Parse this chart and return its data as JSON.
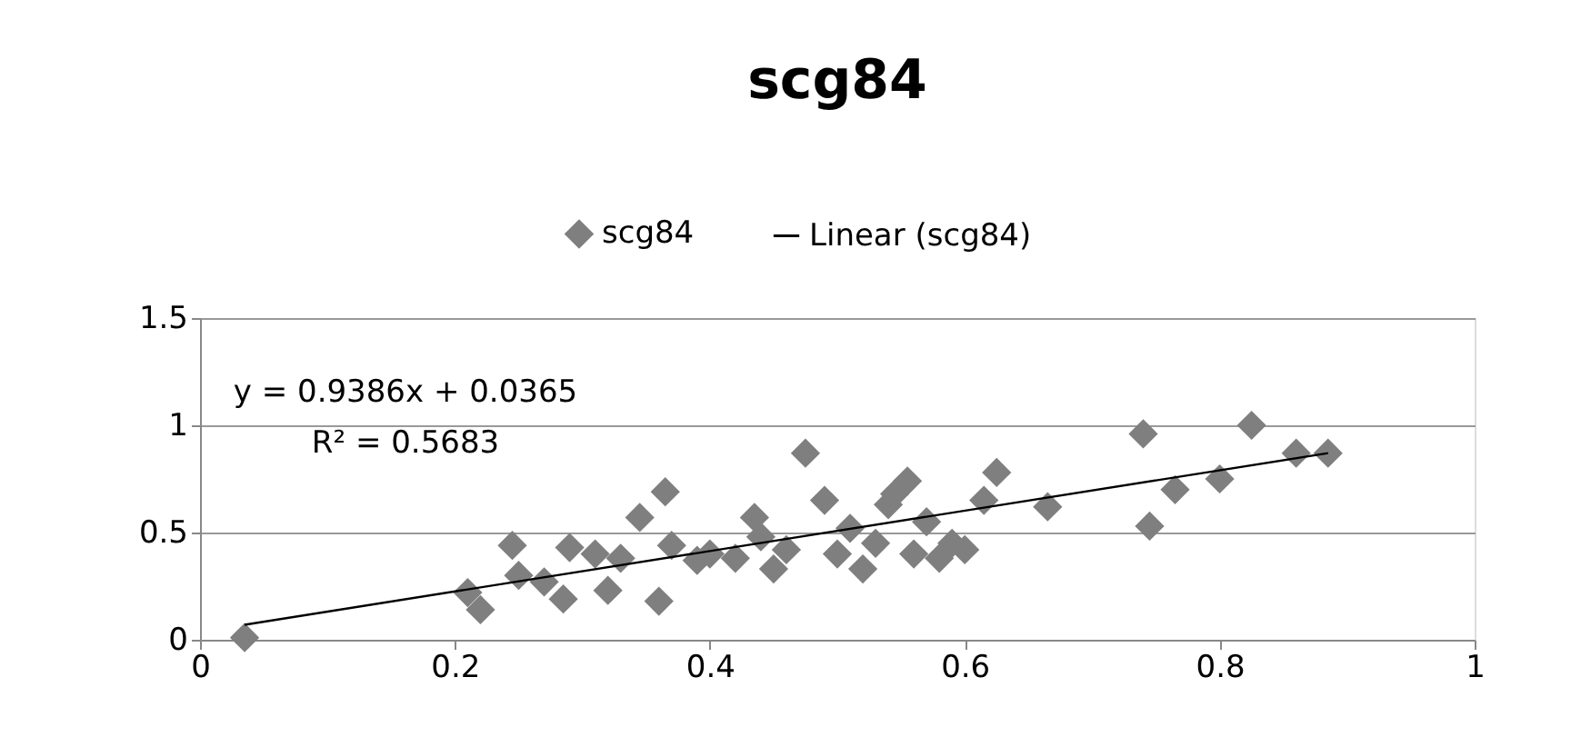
{
  "chart_data": {
    "type": "scatter",
    "title": "scg84",
    "series": [
      {
        "name": "scg84",
        "color": "#7f7f7f",
        "marker": "diamond",
        "x": [
          0.035,
          0.21,
          0.22,
          0.245,
          0.25,
          0.27,
          0.285,
          0.29,
          0.31,
          0.32,
          0.33,
          0.345,
          0.36,
          0.365,
          0.37,
          0.39,
          0.4,
          0.42,
          0.435,
          0.44,
          0.45,
          0.46,
          0.475,
          0.49,
          0.5,
          0.51,
          0.52,
          0.53,
          0.54,
          0.545,
          0.555,
          0.56,
          0.57,
          0.58,
          0.59,
          0.6,
          0.615,
          0.625,
          0.665,
          0.74,
          0.745,
          0.765,
          0.8,
          0.825,
          0.86,
          0.885
        ],
        "values": [
          0.01,
          0.22,
          0.14,
          0.44,
          0.3,
          0.27,
          0.19,
          0.43,
          0.4,
          0.23,
          0.38,
          0.57,
          0.18,
          0.69,
          0.44,
          0.37,
          0.4,
          0.38,
          0.57,
          0.48,
          0.33,
          0.42,
          0.87,
          0.65,
          0.4,
          0.52,
          0.33,
          0.45,
          0.63,
          0.68,
          0.74,
          0.4,
          0.55,
          0.38,
          0.45,
          0.42,
          0.65,
          0.78,
          0.62,
          0.96,
          0.53,
          0.7,
          0.75,
          1.0,
          0.87,
          0.87
        ]
      },
      {
        "name": "Linear (scg84)",
        "type": "line",
        "color": "#000000",
        "marker": "none",
        "x": [
          0.035,
          0.885
        ],
        "values": [
          0.07,
          0.87
        ]
      }
    ],
    "annotations": [
      "y = 0.9386x + 0.0365",
      "R² = 0.5683"
    ],
    "xlim": [
      0,
      1
    ],
    "xticks": [
      0,
      0.2,
      0.4,
      0.6,
      0.8,
      1
    ],
    "ylim": [
      0,
      1.5
    ],
    "yticks": [
      0,
      0.5,
      1,
      1.5
    ],
    "grid": "y",
    "legend": "top"
  }
}
